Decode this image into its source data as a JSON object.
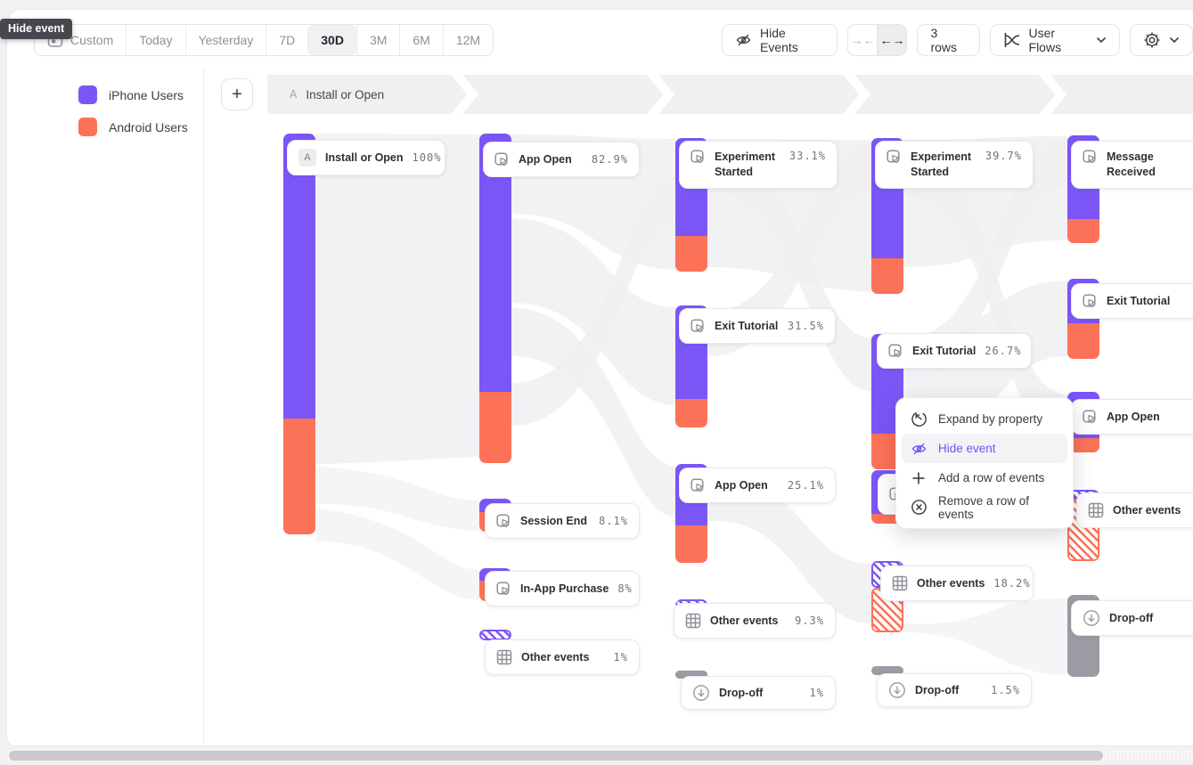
{
  "tooltip": {
    "label": "Hide event"
  },
  "toolbar": {
    "date_ranges": [
      "Custom",
      "Today",
      "Yesterday",
      "7D",
      "30D",
      "3M",
      "6M",
      "12M"
    ],
    "active_range": "30D",
    "hide_events": "Hide Events",
    "rows": "3 rows",
    "view": "User Flows",
    "icons": {
      "collapse": "→←",
      "expand": "←→"
    }
  },
  "controls": {
    "add_segment": "+"
  },
  "legend": {
    "items": [
      {
        "label": "iPhone Users",
        "color": "#7b56f7"
      },
      {
        "label": "Android Users",
        "color": "#fc7258"
      }
    ]
  },
  "breadcrumb": {
    "badge": "A",
    "label": "Install or Open"
  },
  "context_menu": {
    "items": [
      {
        "label": "Expand by property",
        "icon": "expand-by-property-icon",
        "highlighted": false
      },
      {
        "label": "Hide event",
        "icon": "hide-event-eye-icon",
        "highlighted": true
      },
      {
        "label": "Add a row of events",
        "icon": "plus-icon",
        "highlighted": false
      },
      {
        "label": "Remove a row of events",
        "icon": "remove-row-icon",
        "highlighted": false
      }
    ]
  },
  "colors": {
    "purple": "#7b56f7",
    "orange": "#fc7258",
    "dropoff_gray": "#9b9ba3",
    "menu_highlight": "#7452f6"
  },
  "chart_data": {
    "type": "sankey",
    "legend": [
      "iPhone Users",
      "Android Users"
    ],
    "cols": [
      {
        "nodes": [
          {
            "badge": "A",
            "label": "Install or Open",
            "value": "100%"
          }
        ]
      },
      {
        "nodes": [
          {
            "label": "App Open",
            "value": "82.9%"
          },
          {
            "label": "Session End",
            "value": "8.1%"
          },
          {
            "label": "In-App Purchase",
            "value": "8%"
          },
          {
            "label": "Other events",
            "value": "1%"
          }
        ]
      },
      {
        "nodes": [
          {
            "label": "Experiment Started",
            "value": "33.1%"
          },
          {
            "label": "Exit Tutorial",
            "value": "31.5%"
          },
          {
            "label": "App Open",
            "value": "25.1%"
          },
          {
            "label": "Other events",
            "value": "9.3%"
          },
          {
            "label": "Drop-off",
            "value": "1%"
          }
        ]
      },
      {
        "nodes": [
          {
            "label": "Experiment Started",
            "value": "39.7%"
          },
          {
            "label": "Exit Tutorial",
            "value": "26.7%"
          },
          {
            "label": "Other events",
            "value": "18.2%"
          },
          {
            "label": "Drop-off",
            "value": "1.5%"
          }
        ]
      },
      {
        "nodes": [
          {
            "label": "Message Received",
            "value": ""
          },
          {
            "label": "Exit Tutorial",
            "value": ""
          },
          {
            "label": "App Open",
            "value": ""
          },
          {
            "label": "Other events",
            "value": ""
          },
          {
            "label": "Drop-off",
            "value": ""
          }
        ]
      }
    ]
  }
}
